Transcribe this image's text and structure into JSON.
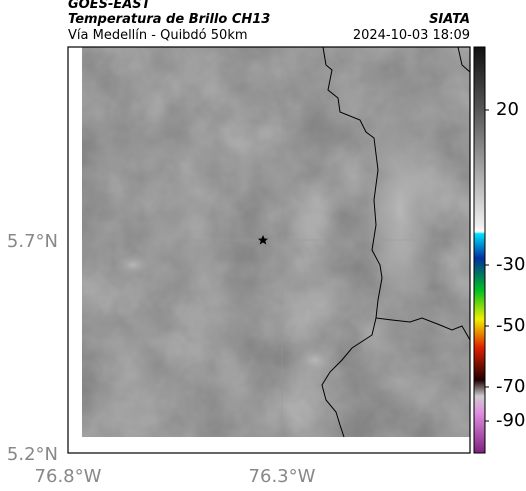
{
  "header": {
    "source": "GOES-EAST",
    "title": "Temperatura de Brillo CH13",
    "subtitle": "Vía Medellín - Quibdó 50km",
    "agency": "SIATA",
    "timestamp": "2024-10-03 18:09"
  },
  "map": {
    "lat_labels": [
      "5.7°N",
      "5.2°N"
    ],
    "lon_labels": [
      "76.8°W",
      "76.3°W"
    ]
  },
  "colorbar": {
    "ticks": [
      20,
      -30,
      -50,
      -70,
      -90
    ]
  }
}
